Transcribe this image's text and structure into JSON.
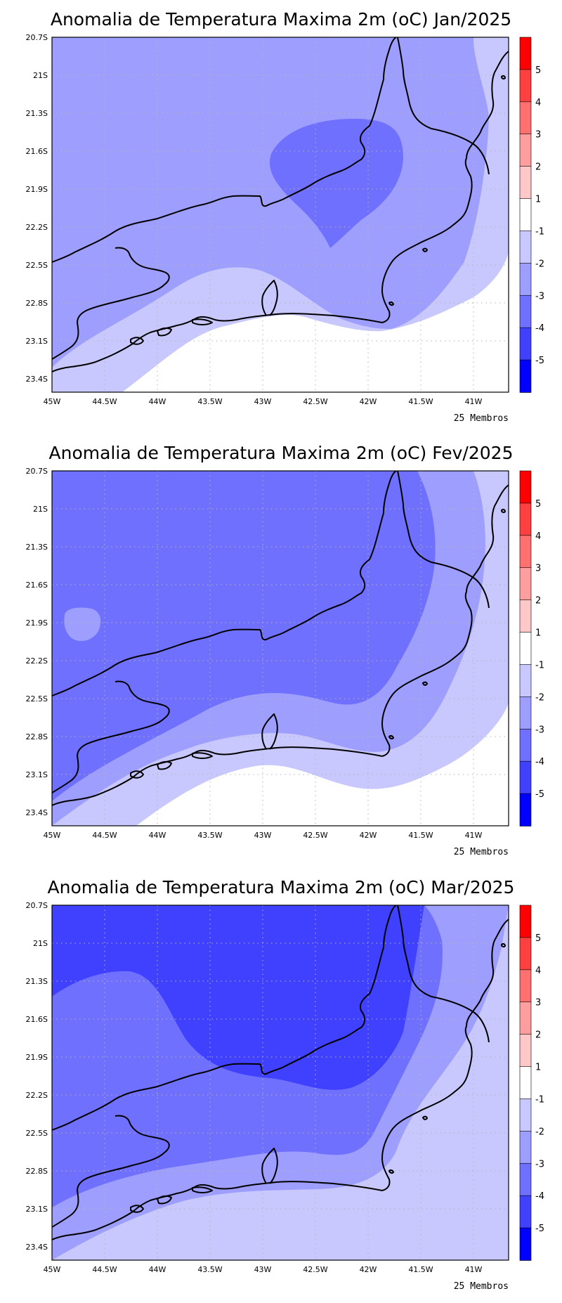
{
  "members_label": "25 Membros",
  "lon_ticks": [
    "45W",
    "44.5W",
    "44W",
    "43.5W",
    "43W",
    "42.5W",
    "42W",
    "41.5W",
    "41W"
  ],
  "lat_ticks": [
    "20.7S",
    "21S",
    "21.3S",
    "21.6S",
    "21.9S",
    "22.2S",
    "22.5S",
    "22.8S",
    "23.1S",
    "23.4S"
  ],
  "colorbar": {
    "labels": [
      "5",
      "4",
      "3",
      "2",
      "1",
      "-1",
      "-2",
      "-3",
      "-4",
      "-5"
    ],
    "colors": [
      "#ff0000",
      "#ff4040",
      "#ff7070",
      "#ff9e9e",
      "#ffc8c8",
      "#ffffff",
      "#c8c8ff",
      "#9e9eff",
      "#7070ff",
      "#4040ff",
      "#0000ff"
    ]
  },
  "panels": [
    {
      "title": "Anomalia de Temperatura Maxima 2m (oC) Jan/2025",
      "month": "Jan/2025",
      "background_level": -2,
      "zones": [
        {
          "level": -2,
          "color": "#9e9eff",
          "desc": "dominant interior/north"
        },
        {
          "level": -2.5,
          "color": "#7070ff",
          "desc": "central core around 42.5W 21.7S"
        },
        {
          "level": -1.5,
          "color": "#c8c8ff",
          "desc": "coastal and east band"
        },
        {
          "level": 0,
          "color": "#ffffff",
          "desc": "southern ocean"
        }
      ]
    },
    {
      "title": "Anomalia de Temperatura Maxima 2m (oC) Fev/2025",
      "month": "Fev/2025",
      "background_level": -3,
      "zones": [
        {
          "level": -3,
          "color": "#7070ff",
          "desc": "dominant interior"
        },
        {
          "level": -2,
          "color": "#9e9eff",
          "desc": "east band and small western patch"
        },
        {
          "level": -1,
          "color": "#c8c8ff",
          "desc": "coastal band"
        },
        {
          "level": 0,
          "color": "#ffffff",
          "desc": "southern ocean"
        }
      ]
    },
    {
      "title": "Anomalia de Temperatura Maxima 2m (oC) Mar/2025",
      "month": "Mar/2025",
      "background_level": -3,
      "zones": [
        {
          "level": -4,
          "color": "#4040ff",
          "desc": "northern core"
        },
        {
          "level": -3,
          "color": "#7070ff",
          "desc": "interior belt"
        },
        {
          "level": -2,
          "color": "#9e9eff",
          "desc": "coastal band"
        },
        {
          "level": -1,
          "color": "#c8c8ff",
          "desc": "southern ocean and east"
        }
      ]
    }
  ]
}
